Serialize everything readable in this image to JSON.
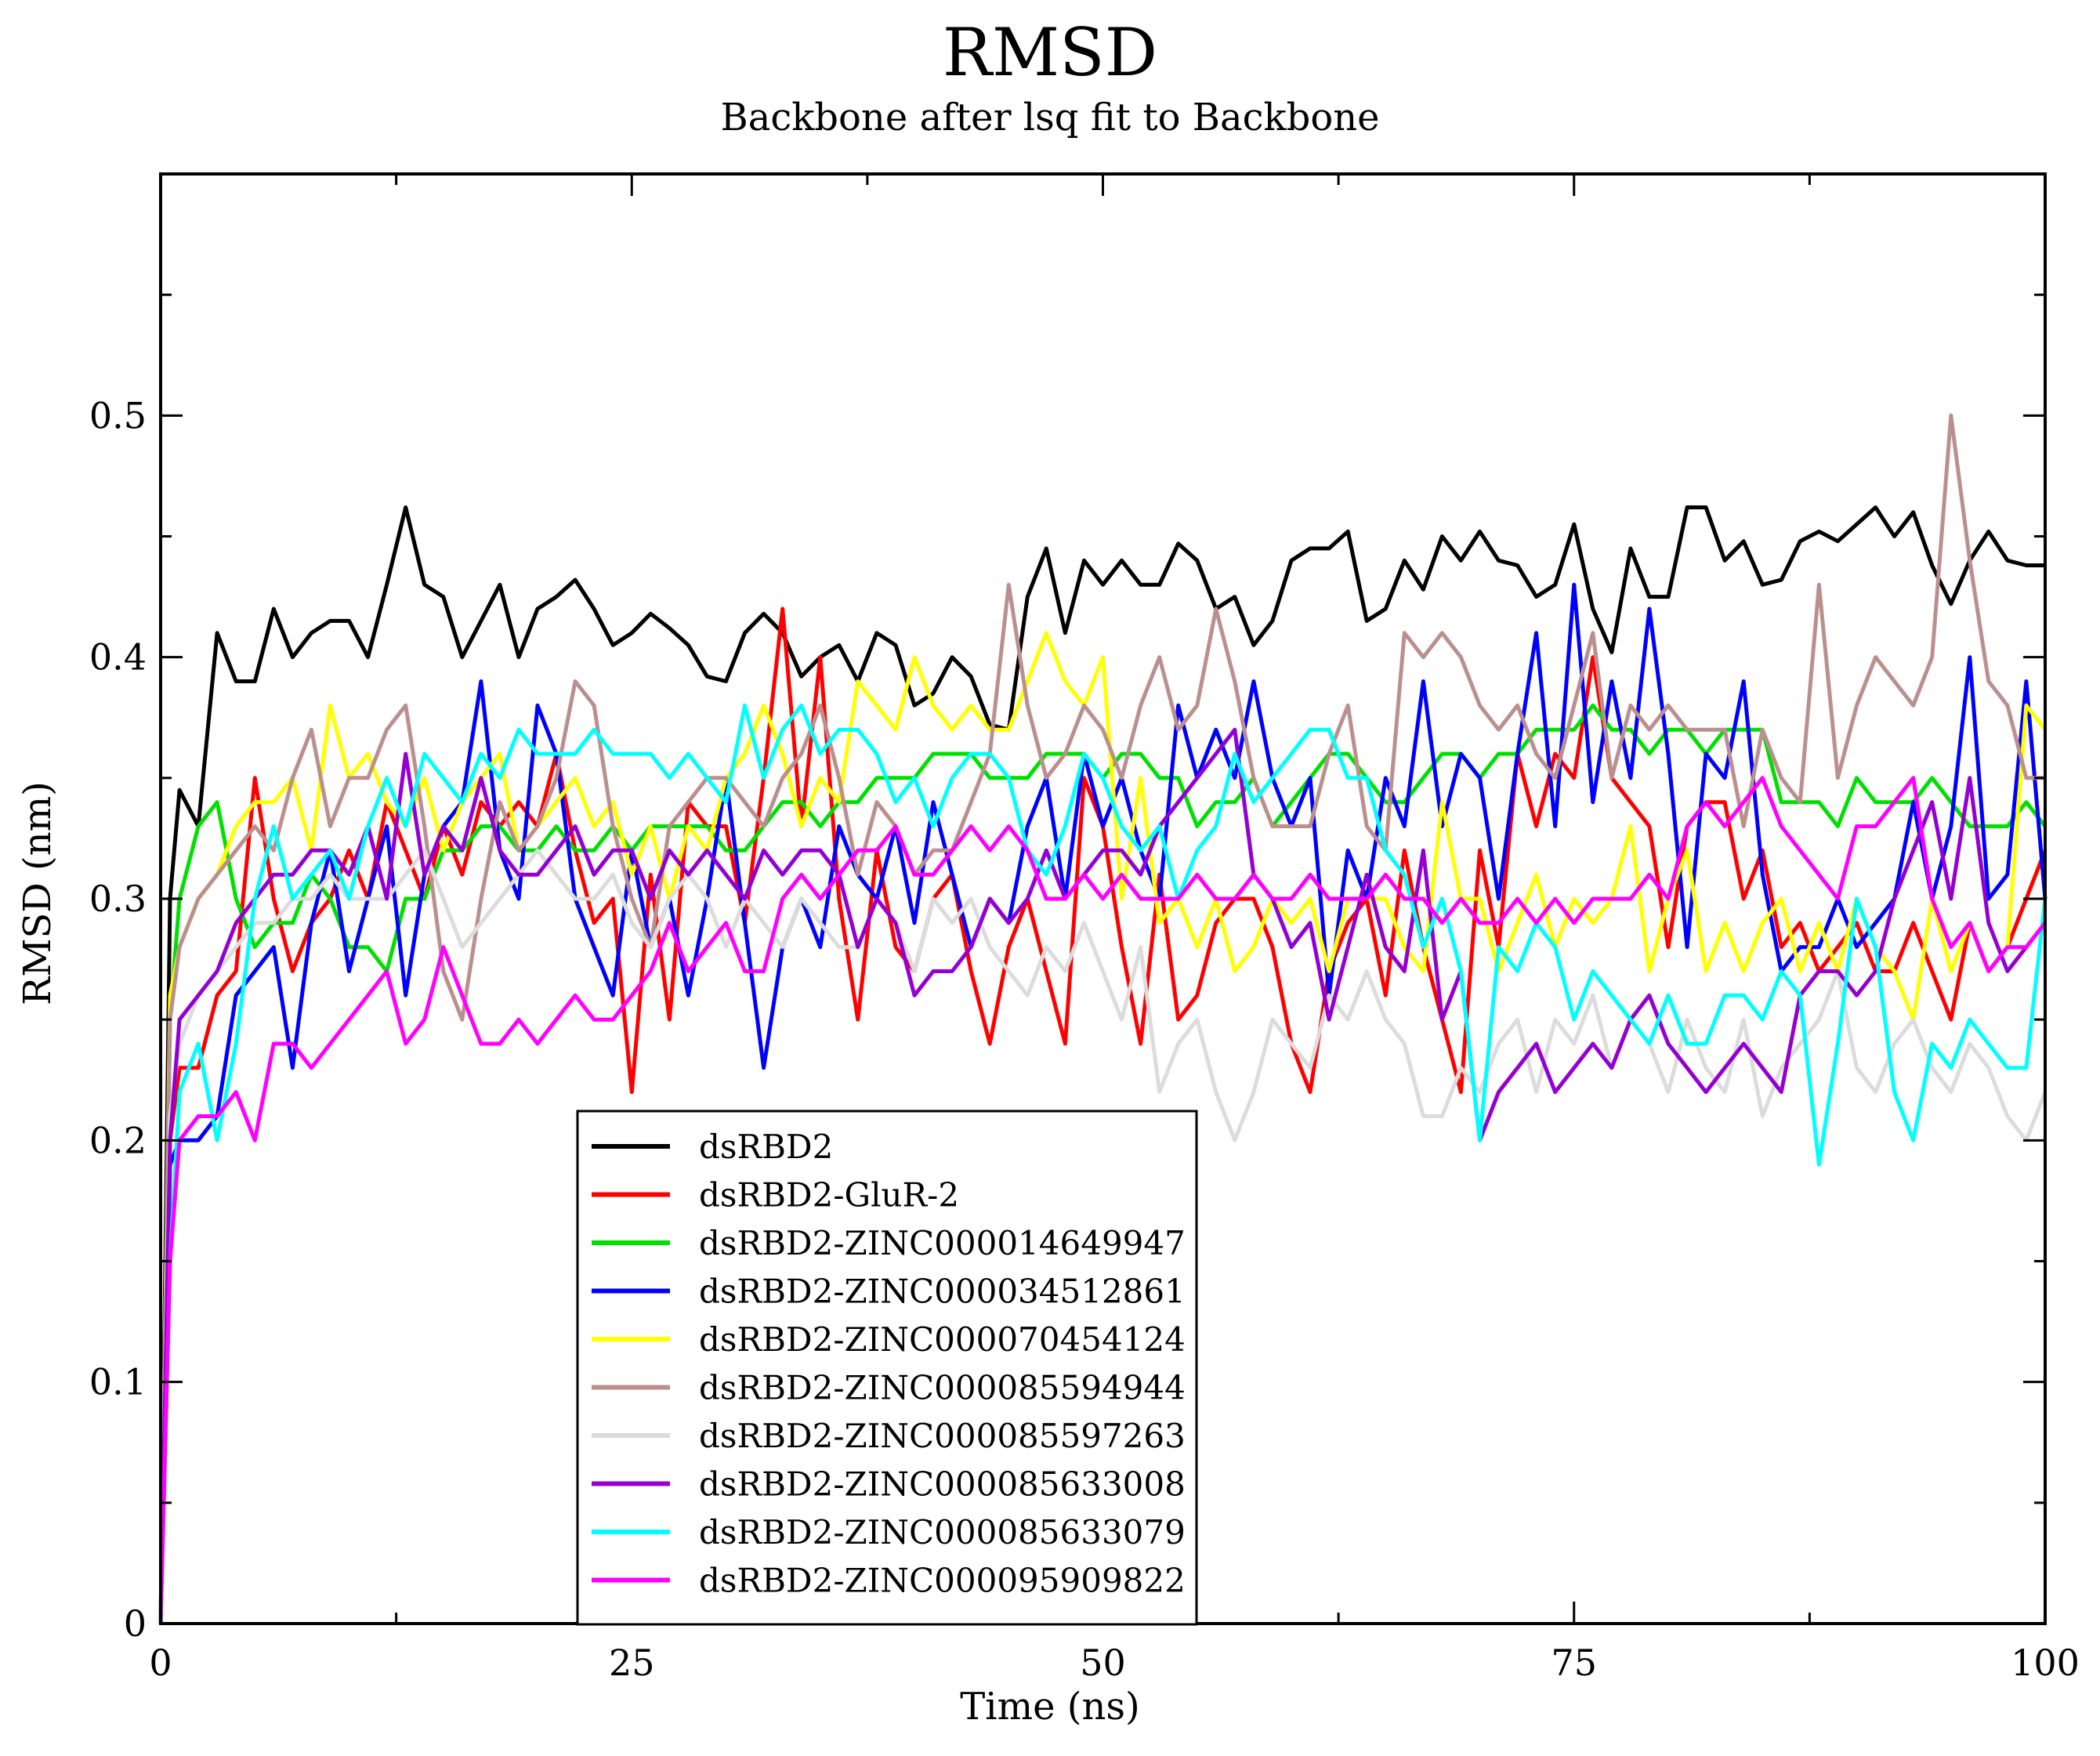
{
  "chart_data": {
    "type": "line",
    "title": "RMSD",
    "subtitle": "Backbone after lsq fit to Backbone",
    "xlabel": "Time (ns)",
    "ylabel": "RMSD (nm)",
    "xlim": [
      0,
      100
    ],
    "ylim": [
      0,
      0.6
    ],
    "x_ticks": [
      0,
      25,
      50,
      75,
      100
    ],
    "y_ticks": [
      0,
      0.1,
      0.2,
      0.3,
      0.4,
      0.5
    ],
    "grid": false,
    "legend_position": "lower-center-left",
    "x": [
      0,
      0.5,
      1,
      2,
      3,
      4,
      5,
      6,
      7,
      8,
      9,
      10,
      11,
      12,
      13,
      14,
      15,
      16,
      17,
      18,
      19,
      20,
      21,
      22,
      23,
      24,
      25,
      26,
      27,
      28,
      29,
      30,
      31,
      32,
      33,
      34,
      35,
      36,
      37,
      38,
      39,
      40,
      41,
      42,
      43,
      44,
      45,
      46,
      47,
      48,
      49,
      50,
      51,
      52,
      53,
      54,
      55,
      56,
      57,
      58,
      59,
      60,
      61,
      62,
      63,
      64,
      65,
      66,
      67,
      68,
      69,
      70,
      71,
      72,
      73,
      74,
      75,
      76,
      77,
      78,
      79,
      80,
      81,
      82,
      83,
      84,
      85,
      86,
      87,
      88,
      89,
      90,
      91,
      92,
      93,
      94,
      95,
      96,
      97,
      98,
      99,
      100
    ],
    "series": [
      {
        "name": "dsRBD2",
        "color": "#000000",
        "values": [
          0.0,
          0.3,
          0.345,
          0.33,
          0.41,
          0.39,
          0.39,
          0.42,
          0.4,
          0.41,
          0.415,
          0.415,
          0.4,
          0.43,
          0.462,
          0.43,
          0.425,
          0.4,
          0.415,
          0.43,
          0.4,
          0.42,
          0.425,
          0.432,
          0.42,
          0.405,
          0.41,
          0.418,
          0.412,
          0.405,
          0.392,
          0.39,
          0.41,
          0.418,
          0.41,
          0.392,
          0.4,
          0.405,
          0.39,
          0.41,
          0.405,
          0.38,
          0.385,
          0.4,
          0.392,
          0.372,
          0.37,
          0.425,
          0.445,
          0.41,
          0.44,
          0.43,
          0.44,
          0.43,
          0.43,
          0.447,
          0.44,
          0.42,
          0.425,
          0.405,
          0.415,
          0.44,
          0.445,
          0.445,
          0.452,
          0.415,
          0.42,
          0.44,
          0.428,
          0.45,
          0.44,
          0.452,
          0.44,
          0.438,
          0.425,
          0.43,
          0.455,
          0.42,
          0.402,
          0.445,
          0.425,
          0.425,
          0.462,
          0.462,
          0.44,
          0.448,
          0.43,
          0.432,
          0.448,
          0.452,
          0.448,
          0.455,
          0.462,
          0.45,
          0.46,
          0.438,
          0.422,
          0.44,
          0.452,
          0.44,
          0.438,
          0.438
        ]
      },
      {
        "name": "dsRBD2-GluR-2",
        "color": "#ff0000",
        "values": [
          0.0,
          0.2,
          0.23,
          0.23,
          0.26,
          0.27,
          0.35,
          0.3,
          0.27,
          0.29,
          0.3,
          0.32,
          0.3,
          0.34,
          0.32,
          0.3,
          0.33,
          0.31,
          0.34,
          0.33,
          0.34,
          0.33,
          0.36,
          0.32,
          0.29,
          0.3,
          0.22,
          0.31,
          0.25,
          0.34,
          0.33,
          0.33,
          0.29,
          0.35,
          0.42,
          0.33,
          0.4,
          0.3,
          0.25,
          0.32,
          0.28,
          0.27,
          0.3,
          0.31,
          0.27,
          0.24,
          0.28,
          0.3,
          0.27,
          0.24,
          0.35,
          0.33,
          0.28,
          0.24,
          0.31,
          0.25,
          0.26,
          0.29,
          0.3,
          0.3,
          0.28,
          0.24,
          0.22,
          0.27,
          0.29,
          0.3,
          0.26,
          0.32,
          0.28,
          0.25,
          0.22,
          0.32,
          0.28,
          0.36,
          0.33,
          0.36,
          0.35,
          0.4,
          0.35,
          0.34,
          0.33,
          0.28,
          0.33,
          0.34,
          0.34,
          0.3,
          0.32,
          0.28,
          0.29,
          0.27,
          0.28,
          0.29,
          0.27,
          0.27,
          0.29,
          0.27,
          0.25,
          0.29,
          0.27,
          0.28,
          0.3,
          0.32
        ]
      },
      {
        "name": "dsRBD2-ZINC000014649947",
        "color": "#00e000",
        "values": [
          0.0,
          0.25,
          0.3,
          0.33,
          0.34,
          0.3,
          0.28,
          0.29,
          0.29,
          0.31,
          0.3,
          0.28,
          0.28,
          0.27,
          0.3,
          0.3,
          0.32,
          0.32,
          0.33,
          0.33,
          0.32,
          0.32,
          0.33,
          0.32,
          0.32,
          0.33,
          0.32,
          0.33,
          0.33,
          0.33,
          0.33,
          0.32,
          0.32,
          0.33,
          0.34,
          0.34,
          0.33,
          0.34,
          0.34,
          0.35,
          0.35,
          0.35,
          0.36,
          0.36,
          0.36,
          0.35,
          0.35,
          0.35,
          0.36,
          0.36,
          0.36,
          0.35,
          0.36,
          0.36,
          0.35,
          0.35,
          0.33,
          0.34,
          0.34,
          0.35,
          0.33,
          0.34,
          0.35,
          0.36,
          0.36,
          0.35,
          0.34,
          0.34,
          0.35,
          0.36,
          0.36,
          0.35,
          0.36,
          0.36,
          0.37,
          0.37,
          0.37,
          0.38,
          0.37,
          0.37,
          0.36,
          0.37,
          0.37,
          0.36,
          0.37,
          0.37,
          0.37,
          0.34,
          0.34,
          0.34,
          0.33,
          0.35,
          0.34,
          0.34,
          0.34,
          0.35,
          0.34,
          0.33,
          0.33,
          0.33,
          0.34,
          0.33
        ]
      },
      {
        "name": "dsRBD2-ZINC000034512861",
        "color": "#0000ff",
        "values": [
          0.0,
          0.19,
          0.2,
          0.2,
          0.21,
          0.26,
          0.27,
          0.28,
          0.23,
          0.29,
          0.32,
          0.27,
          0.3,
          0.33,
          0.26,
          0.31,
          0.33,
          0.34,
          0.39,
          0.32,
          0.3,
          0.38,
          0.36,
          0.3,
          0.28,
          0.26,
          0.32,
          0.28,
          0.3,
          0.26,
          0.3,
          0.35,
          0.29,
          0.23,
          0.28,
          0.3,
          0.28,
          0.33,
          0.31,
          0.3,
          0.33,
          0.29,
          0.34,
          0.31,
          0.28,
          0.3,
          0.29,
          0.33,
          0.35,
          0.3,
          0.36,
          0.33,
          0.35,
          0.32,
          0.3,
          0.38,
          0.35,
          0.37,
          0.35,
          0.39,
          0.35,
          0.33,
          0.35,
          0.26,
          0.32,
          0.3,
          0.35,
          0.33,
          0.39,
          0.33,
          0.36,
          0.35,
          0.3,
          0.36,
          0.41,
          0.33,
          0.43,
          0.34,
          0.39,
          0.35,
          0.42,
          0.36,
          0.28,
          0.36,
          0.35,
          0.39,
          0.31,
          0.27,
          0.28,
          0.28,
          0.3,
          0.28,
          0.29,
          0.3,
          0.34,
          0.3,
          0.33,
          0.4,
          0.3,
          0.31,
          0.39,
          0.3
        ]
      },
      {
        "name": "dsRBD2-ZINC000070454124",
        "color": "#ffff00",
        "values": [
          0.0,
          0.26,
          0.28,
          0.3,
          0.31,
          0.33,
          0.34,
          0.34,
          0.35,
          0.32,
          0.38,
          0.35,
          0.36,
          0.34,
          0.33,
          0.35,
          0.32,
          0.34,
          0.35,
          0.36,
          0.32,
          0.33,
          0.34,
          0.35,
          0.33,
          0.34,
          0.31,
          0.33,
          0.3,
          0.33,
          0.32,
          0.35,
          0.36,
          0.38,
          0.36,
          0.33,
          0.35,
          0.34,
          0.39,
          0.38,
          0.37,
          0.4,
          0.38,
          0.37,
          0.38,
          0.37,
          0.37,
          0.39,
          0.41,
          0.39,
          0.38,
          0.4,
          0.3,
          0.35,
          0.29,
          0.3,
          0.28,
          0.3,
          0.27,
          0.28,
          0.3,
          0.29,
          0.3,
          0.27,
          0.3,
          0.3,
          0.3,
          0.28,
          0.27,
          0.34,
          0.3,
          0.3,
          0.27,
          0.29,
          0.31,
          0.28,
          0.3,
          0.29,
          0.3,
          0.33,
          0.27,
          0.3,
          0.32,
          0.27,
          0.29,
          0.27,
          0.29,
          0.3,
          0.27,
          0.29,
          0.27,
          0.3,
          0.28,
          0.27,
          0.25,
          0.3,
          0.27,
          0.29,
          0.27,
          0.28,
          0.38,
          0.37
        ]
      },
      {
        "name": "dsRBD2-ZINC000085594944",
        "color": "#bc8f8f",
        "values": [
          0.0,
          0.25,
          0.28,
          0.3,
          0.31,
          0.32,
          0.33,
          0.32,
          0.35,
          0.37,
          0.33,
          0.35,
          0.35,
          0.37,
          0.38,
          0.33,
          0.27,
          0.25,
          0.3,
          0.34,
          0.32,
          0.33,
          0.35,
          0.39,
          0.38,
          0.33,
          0.3,
          0.28,
          0.33,
          0.34,
          0.35,
          0.35,
          0.34,
          0.33,
          0.35,
          0.36,
          0.38,
          0.35,
          0.31,
          0.34,
          0.33,
          0.31,
          0.32,
          0.32,
          0.34,
          0.36,
          0.43,
          0.38,
          0.35,
          0.36,
          0.38,
          0.37,
          0.35,
          0.38,
          0.4,
          0.37,
          0.38,
          0.42,
          0.39,
          0.35,
          0.33,
          0.33,
          0.33,
          0.36,
          0.38,
          0.33,
          0.32,
          0.41,
          0.4,
          0.41,
          0.4,
          0.38,
          0.37,
          0.38,
          0.36,
          0.35,
          0.38,
          0.41,
          0.35,
          0.38,
          0.37,
          0.38,
          0.37,
          0.37,
          0.37,
          0.33,
          0.37,
          0.35,
          0.34,
          0.43,
          0.35,
          0.38,
          0.4,
          0.39,
          0.38,
          0.4,
          0.5,
          0.44,
          0.39,
          0.38,
          0.35,
          0.35
        ]
      },
      {
        "name": "dsRBD2-ZINC000085597263",
        "color": "#dcdcdc",
        "values": [
          0.0,
          0.21,
          0.24,
          0.26,
          0.27,
          0.28,
          0.29,
          0.29,
          0.3,
          0.3,
          0.31,
          0.3,
          0.3,
          0.3,
          0.31,
          0.32,
          0.3,
          0.28,
          0.29,
          0.3,
          0.31,
          0.32,
          0.31,
          0.3,
          0.3,
          0.31,
          0.29,
          0.28,
          0.3,
          0.31,
          0.3,
          0.28,
          0.3,
          0.29,
          0.28,
          0.3,
          0.29,
          0.28,
          0.28,
          0.3,
          0.29,
          0.27,
          0.3,
          0.29,
          0.3,
          0.28,
          0.27,
          0.26,
          0.28,
          0.27,
          0.29,
          0.27,
          0.25,
          0.28,
          0.22,
          0.24,
          0.25,
          0.22,
          0.2,
          0.22,
          0.25,
          0.24,
          0.23,
          0.26,
          0.25,
          0.27,
          0.25,
          0.24,
          0.21,
          0.21,
          0.23,
          0.22,
          0.24,
          0.25,
          0.22,
          0.25,
          0.24,
          0.26,
          0.23,
          0.25,
          0.24,
          0.22,
          0.25,
          0.23,
          0.22,
          0.25,
          0.21,
          0.23,
          0.24,
          0.25,
          0.27,
          0.23,
          0.22,
          0.24,
          0.25,
          0.23,
          0.22,
          0.24,
          0.23,
          0.21,
          0.2,
          0.22
        ]
      },
      {
        "name": "dsRBD2-ZINC000085633008",
        "color": "#9400d3",
        "values": [
          0.0,
          0.2,
          0.25,
          0.26,
          0.27,
          0.29,
          0.3,
          0.31,
          0.31,
          0.32,
          0.32,
          0.31,
          0.33,
          0.3,
          0.36,
          0.31,
          0.33,
          0.32,
          0.35,
          0.32,
          0.31,
          0.31,
          0.32,
          0.33,
          0.31,
          0.32,
          0.32,
          0.3,
          0.32,
          0.31,
          0.32,
          0.31,
          0.3,
          0.32,
          0.31,
          0.32,
          0.32,
          0.31,
          0.28,
          0.3,
          0.29,
          0.26,
          0.27,
          0.27,
          0.28,
          0.3,
          0.29,
          0.3,
          0.32,
          0.3,
          0.31,
          0.32,
          0.32,
          0.31,
          0.33,
          0.34,
          0.35,
          0.36,
          0.37,
          0.31,
          0.3,
          0.28,
          0.29,
          0.25,
          0.28,
          0.31,
          0.28,
          0.27,
          0.32,
          0.25,
          0.27,
          0.2,
          0.22,
          0.23,
          0.24,
          0.22,
          0.23,
          0.24,
          0.23,
          0.25,
          0.26,
          0.24,
          0.23,
          0.22,
          0.23,
          0.24,
          0.23,
          0.22,
          0.26,
          0.27,
          0.27,
          0.26,
          0.27,
          0.3,
          0.32,
          0.34,
          0.3,
          0.35,
          0.29,
          0.27,
          0.28,
          0.29
        ]
      },
      {
        "name": "dsRBD2-ZINC000085633079",
        "color": "#00ffff",
        "values": [
          0.0,
          0.15,
          0.22,
          0.24,
          0.2,
          0.24,
          0.3,
          0.33,
          0.3,
          0.31,
          0.32,
          0.3,
          0.33,
          0.35,
          0.33,
          0.36,
          0.35,
          0.34,
          0.36,
          0.35,
          0.37,
          0.36,
          0.36,
          0.36,
          0.37,
          0.36,
          0.36,
          0.36,
          0.35,
          0.36,
          0.35,
          0.34,
          0.38,
          0.35,
          0.37,
          0.38,
          0.36,
          0.37,
          0.37,
          0.36,
          0.34,
          0.35,
          0.33,
          0.35,
          0.36,
          0.36,
          0.35,
          0.32,
          0.31,
          0.33,
          0.36,
          0.35,
          0.33,
          0.32,
          0.33,
          0.3,
          0.32,
          0.33,
          0.36,
          0.34,
          0.35,
          0.36,
          0.37,
          0.37,
          0.35,
          0.35,
          0.32,
          0.31,
          0.28,
          0.3,
          0.27,
          0.2,
          0.28,
          0.27,
          0.29,
          0.28,
          0.25,
          0.27,
          0.26,
          0.25,
          0.24,
          0.26,
          0.24,
          0.24,
          0.26,
          0.26,
          0.25,
          0.27,
          0.26,
          0.19,
          0.24,
          0.3,
          0.28,
          0.22,
          0.2,
          0.24,
          0.23,
          0.25,
          0.24,
          0.23,
          0.23,
          0.3
        ]
      },
      {
        "name": "dsRBD2-ZINC000095909822",
        "color": "#ff00ff",
        "values": [
          0.0,
          0.15,
          0.2,
          0.21,
          0.21,
          0.22,
          0.2,
          0.24,
          0.24,
          0.23,
          0.24,
          0.25,
          0.26,
          0.27,
          0.24,
          0.25,
          0.28,
          0.26,
          0.24,
          0.24,
          0.25,
          0.24,
          0.25,
          0.26,
          0.25,
          0.25,
          0.26,
          0.27,
          0.29,
          0.27,
          0.28,
          0.29,
          0.27,
          0.27,
          0.3,
          0.31,
          0.3,
          0.31,
          0.32,
          0.32,
          0.33,
          0.31,
          0.31,
          0.32,
          0.33,
          0.32,
          0.33,
          0.32,
          0.3,
          0.3,
          0.31,
          0.3,
          0.31,
          0.3,
          0.3,
          0.3,
          0.31,
          0.3,
          0.3,
          0.31,
          0.3,
          0.3,
          0.31,
          0.3,
          0.3,
          0.3,
          0.31,
          0.3,
          0.3,
          0.29,
          0.3,
          0.29,
          0.29,
          0.3,
          0.29,
          0.3,
          0.29,
          0.3,
          0.3,
          0.3,
          0.31,
          0.3,
          0.33,
          0.34,
          0.33,
          0.34,
          0.35,
          0.33,
          0.32,
          0.31,
          0.3,
          0.33,
          0.33,
          0.34,
          0.35,
          0.3,
          0.28,
          0.29,
          0.27,
          0.28,
          0.28,
          0.29
        ]
      }
    ]
  }
}
